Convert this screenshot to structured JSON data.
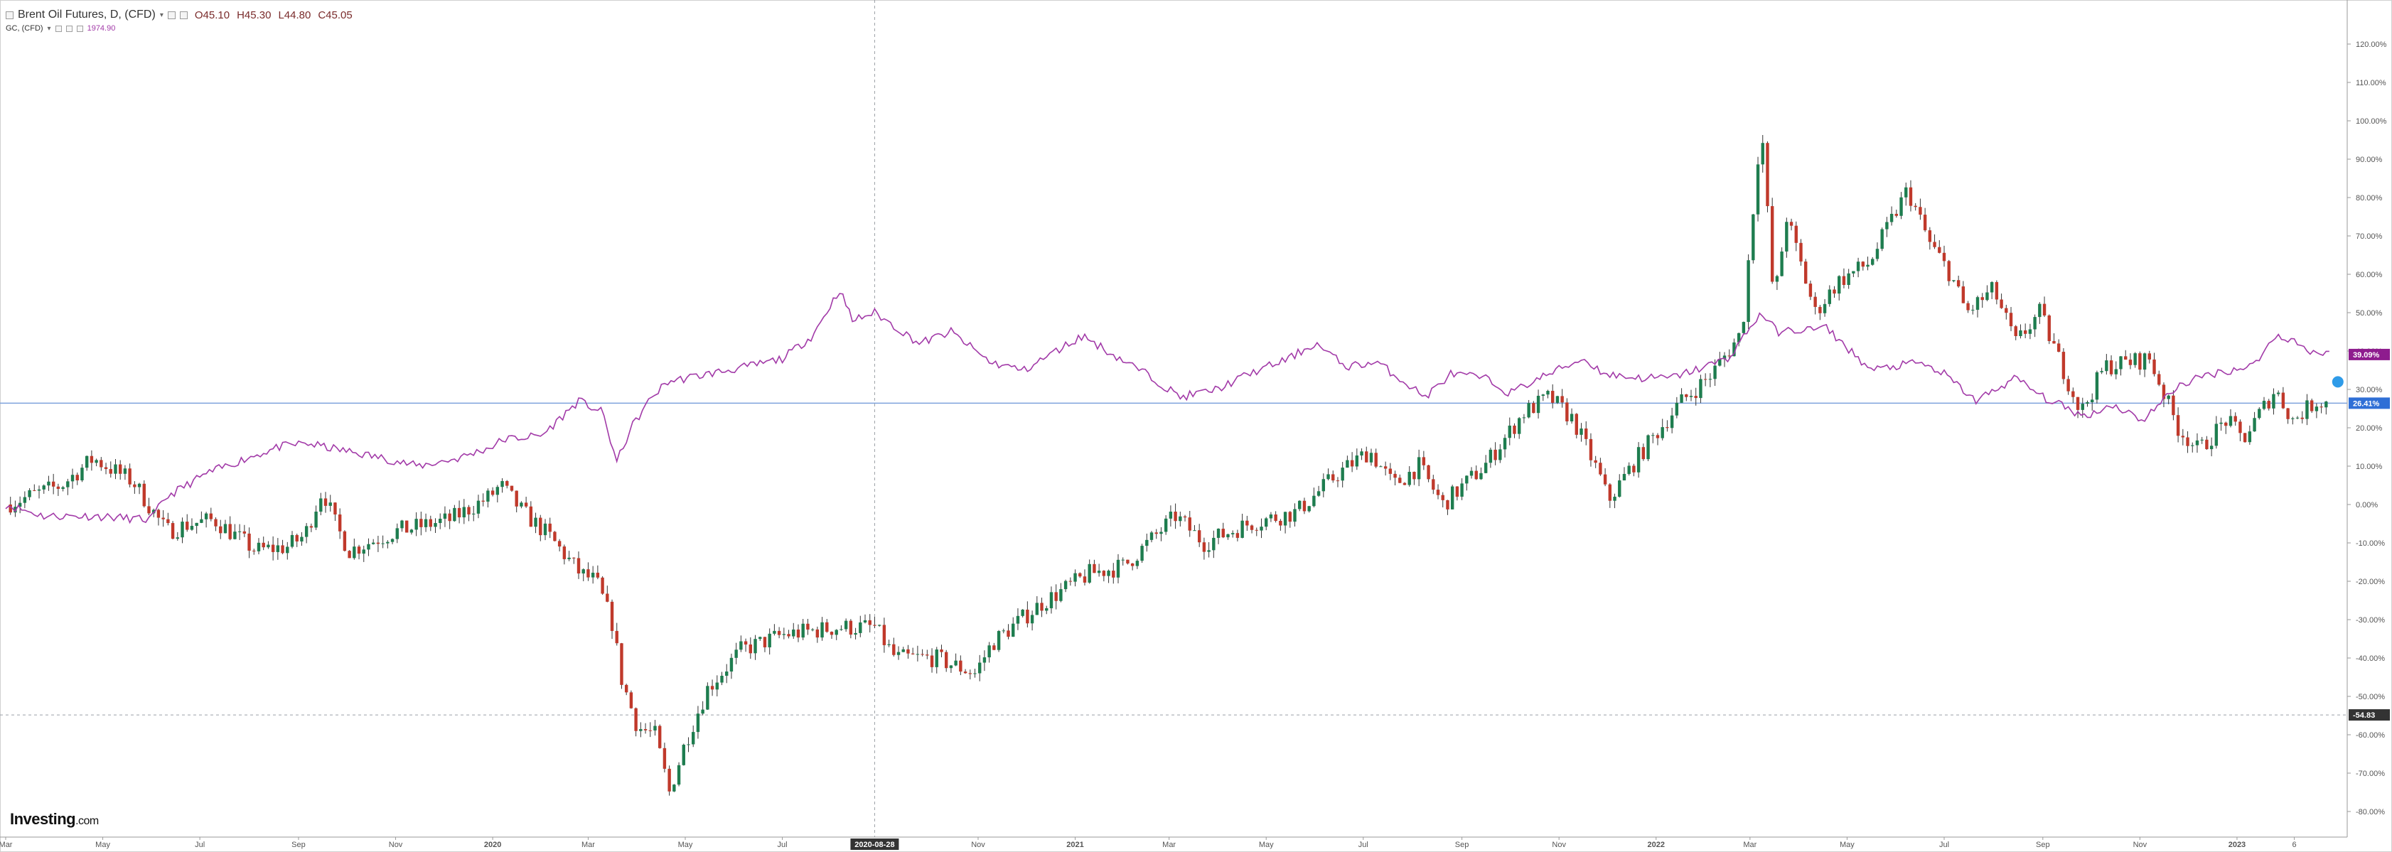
{
  "legend": {
    "primary_title": "Brent Oil Futures, D, (CFD)",
    "caret": "▾",
    "open": "O45.10",
    "high": "H45.30",
    "low": "L44.80",
    "close": "C45.05",
    "secondary_title": "GC, (CFD)",
    "secondary_value": "1974.90"
  },
  "logo": {
    "brand": "Investing",
    "suffix": ".com"
  },
  "colors": {
    "up": "#1e7d4f",
    "down": "#c0392b",
    "gold_line": "#a23aa8",
    "baseline": "#7ea2dc",
    "crosshair": "#9aa0a6",
    "axis_text": "#555555",
    "gold_badge": "#8e1c8e",
    "brent_badge": "#2f6fd6",
    "crosshair_badge": "#333333"
  },
  "chart_data": {
    "type": "line",
    "title": "Brent Oil Futures, D, (CFD)",
    "ylabel": "",
    "xlabel": "",
    "y_unit": "%",
    "ylim": [
      -85,
      125
    ],
    "xlim": [
      "2019-03-01",
      "2023-03-05"
    ],
    "grid": false,
    "y_ticks": [
      120,
      110,
      100,
      90,
      80,
      70,
      60,
      50,
      40,
      30,
      20,
      10,
      0,
      -10,
      -20,
      -30,
      -40,
      -50,
      -60,
      -70,
      -80
    ],
    "y_tick_labels": [
      "120.00%",
      "110.00%",
      "100.00%",
      "90.00%",
      "80.00%",
      "70.00%",
      "60.00%",
      "50.00%",
      "40.00%",
      "30.00%",
      "20.00%",
      "10.00%",
      "0.00%",
      "-10.00%",
      "-20.00%",
      "-30.00%",
      "-40.00%",
      "-50.00%",
      "-60.00%",
      "-70.00%",
      "-80.00%"
    ],
    "x_ticks": [
      {
        "date": "2019-03-01",
        "label": "Mar",
        "bold": false
      },
      {
        "date": "2019-05-01",
        "label": "May",
        "bold": false
      },
      {
        "date": "2019-07-01",
        "label": "Jul",
        "bold": false
      },
      {
        "date": "2019-09-01",
        "label": "Sep",
        "bold": false
      },
      {
        "date": "2019-11-01",
        "label": "Nov",
        "bold": false
      },
      {
        "date": "2020-01-01",
        "label": "2020",
        "bold": true
      },
      {
        "date": "2020-03-01",
        "label": "Mar",
        "bold": false
      },
      {
        "date": "2020-05-01",
        "label": "May",
        "bold": false
      },
      {
        "date": "2020-07-01",
        "label": "Jul",
        "bold": false
      },
      {
        "date": "2020-11-01",
        "label": "Nov",
        "bold": false
      },
      {
        "date": "2021-01-01",
        "label": "2021",
        "bold": true
      },
      {
        "date": "2021-03-01",
        "label": "Mar",
        "bold": false
      },
      {
        "date": "2021-05-01",
        "label": "May",
        "bold": false
      },
      {
        "date": "2021-07-01",
        "label": "Jul",
        "bold": false
      },
      {
        "date": "2021-09-01",
        "label": "Sep",
        "bold": false
      },
      {
        "date": "2021-11-01",
        "label": "Nov",
        "bold": false
      },
      {
        "date": "2022-01-01",
        "label": "2022",
        "bold": true
      },
      {
        "date": "2022-03-01",
        "label": "Mar",
        "bold": false
      },
      {
        "date": "2022-05-01",
        "label": "May",
        "bold": false
      },
      {
        "date": "2022-07-01",
        "label": "Jul",
        "bold": false
      },
      {
        "date": "2022-09-01",
        "label": "Sep",
        "bold": false
      },
      {
        "date": "2022-11-01",
        "label": "Nov",
        "bold": false
      },
      {
        "date": "2023-01-01",
        "label": "2023",
        "bold": true
      },
      {
        "date": "2023-02-06",
        "label": "6",
        "bold": false
      }
    ],
    "crosshair": {
      "date": "2020-08-28",
      "label": "2020-08-28",
      "value": -54.83,
      "value_label": "-54.83"
    },
    "baseline": {
      "value": 26.41
    },
    "last_value_labels": [
      {
        "series": "GC, (CFD)",
        "value": 39.09,
        "label": "39.09%"
      },
      {
        "series": "Brent Oil Futures, D, (CFD)",
        "value": 26.41,
        "label": "26.41%"
      }
    ],
    "series": [
      {
        "name": "Brent Oil Futures, D, (CFD)",
        "style": "candles",
        "points": [
          [
            "2019-03-01",
            0
          ],
          [
            "2019-04-05",
            5
          ],
          [
            "2019-04-25",
            12
          ],
          [
            "2019-05-20",
            6
          ],
          [
            "2019-06-10",
            -7
          ],
          [
            "2019-06-25",
            -5
          ],
          [
            "2019-07-10",
            -4
          ],
          [
            "2019-08-05",
            -12
          ],
          [
            "2019-08-25",
            -11
          ],
          [
            "2019-09-05",
            -8
          ],
          [
            "2019-09-16",
            4
          ],
          [
            "2019-09-25",
            -6
          ],
          [
            "2019-10-03",
            -12
          ],
          [
            "2019-11-01",
            -7
          ],
          [
            "2019-12-05",
            -4
          ],
          [
            "2019-12-30",
            2
          ],
          [
            "2020-01-06",
            5
          ],
          [
            "2020-01-20",
            -2
          ],
          [
            "2020-02-05",
            -8
          ],
          [
            "2020-02-25",
            -18
          ],
          [
            "2020-03-06",
            -20
          ],
          [
            "2020-03-18",
            -33
          ],
          [
            "2020-03-20",
            -43
          ],
          [
            "2020-04-01",
            -58
          ],
          [
            "2020-04-12",
            -60
          ],
          [
            "2020-04-21",
            -75
          ],
          [
            "2020-05-01",
            -62
          ],
          [
            "2020-05-15",
            -48
          ],
          [
            "2020-06-05",
            -38
          ],
          [
            "2020-07-01",
            -34
          ],
          [
            "2020-08-05",
            -32
          ],
          [
            "2020-08-28",
            -32
          ],
          [
            "2020-09-10",
            -40
          ],
          [
            "2020-10-05",
            -40
          ],
          [
            "2020-10-30",
            -44
          ],
          [
            "2020-11-10",
            -36
          ],
          [
            "2020-12-10",
            -26
          ],
          [
            "2021-01-10",
            -18
          ],
          [
            "2021-02-01",
            -16
          ],
          [
            "2021-03-05",
            -3
          ],
          [
            "2021-03-23",
            -10
          ],
          [
            "2021-04-20",
            -5
          ],
          [
            "2021-05-20",
            -2
          ],
          [
            "2021-06-15",
            8
          ],
          [
            "2021-07-05",
            14
          ],
          [
            "2021-07-20",
            5
          ],
          [
            "2021-08-05",
            10
          ],
          [
            "2021-08-20",
            0
          ],
          [
            "2021-09-15",
            10
          ],
          [
            "2021-10-10",
            24
          ],
          [
            "2021-10-26",
            28
          ],
          [
            "2021-11-10",
            22
          ],
          [
            "2021-11-26",
            8
          ],
          [
            "2021-12-02",
            1
          ],
          [
            "2021-12-20",
            12
          ],
          [
            "2022-01-15",
            26
          ],
          [
            "2022-02-05",
            34
          ],
          [
            "2022-02-24",
            45
          ],
          [
            "2022-03-08",
            100
          ],
          [
            "2022-03-16",
            52
          ],
          [
            "2022-03-24",
            75
          ],
          [
            "2022-04-11",
            50
          ],
          [
            "2022-04-25",
            58
          ],
          [
            "2022-05-15",
            63
          ],
          [
            "2022-06-08",
            82
          ],
          [
            "2022-06-22",
            68
          ],
          [
            "2022-07-05",
            60
          ],
          [
            "2022-07-15",
            50
          ],
          [
            "2022-08-01",
            56
          ],
          [
            "2022-08-15",
            42
          ],
          [
            "2022-08-30",
            50
          ],
          [
            "2022-09-25",
            24
          ],
          [
            "2022-10-10",
            36
          ],
          [
            "2022-11-07",
            38
          ],
          [
            "2022-11-25",
            20
          ],
          [
            "2022-12-08",
            14
          ],
          [
            "2022-12-25",
            22
          ],
          [
            "2023-01-05",
            17
          ],
          [
            "2023-01-25",
            30
          ],
          [
            "2023-02-05",
            22
          ],
          [
            "2023-02-20",
            27
          ],
          [
            "2023-02-28",
            26.41
          ]
        ]
      },
      {
        "name": "GC, (CFD)",
        "style": "line",
        "points": [
          [
            "2019-03-01",
            0
          ],
          [
            "2019-03-25",
            -3
          ],
          [
            "2019-04-25",
            -3
          ],
          [
            "2019-05-31",
            -4
          ],
          [
            "2019-06-10",
            2
          ],
          [
            "2019-07-05",
            8
          ],
          [
            "2019-07-30",
            12
          ],
          [
            "2019-08-20",
            15
          ],
          [
            "2019-09-05",
            16
          ],
          [
            "2019-09-30",
            14
          ],
          [
            "2019-10-25",
            12
          ],
          [
            "2019-11-15",
            10
          ],
          [
            "2019-12-10",
            12
          ],
          [
            "2019-12-31",
            15
          ],
          [
            "2020-01-08",
            17
          ],
          [
            "2020-02-01",
            18
          ],
          [
            "2020-02-24",
            27
          ],
          [
            "2020-03-10",
            24
          ],
          [
            "2020-03-19",
            11
          ],
          [
            "2020-03-28",
            20
          ],
          [
            "2020-04-10",
            28
          ],
          [
            "2020-04-20",
            32
          ],
          [
            "2020-05-15",
            34
          ],
          [
            "2020-06-10",
            36
          ],
          [
            "2020-07-01",
            38
          ],
          [
            "2020-07-20",
            44
          ],
          [
            "2020-08-06",
            56
          ],
          [
            "2020-08-14",
            48
          ],
          [
            "2020-08-28",
            50
          ],
          [
            "2020-09-25",
            42
          ],
          [
            "2020-10-15",
            45
          ],
          [
            "2020-11-09",
            37
          ],
          [
            "2020-11-30",
            35
          ],
          [
            "2020-12-20",
            40
          ],
          [
            "2021-01-06",
            44
          ],
          [
            "2021-01-25",
            39
          ],
          [
            "2021-02-15",
            34
          ],
          [
            "2021-03-08",
            28
          ],
          [
            "2021-03-31",
            30
          ],
          [
            "2021-04-20",
            34
          ],
          [
            "2021-05-15",
            38
          ],
          [
            "2021-06-01",
            42
          ],
          [
            "2021-06-20",
            36
          ],
          [
            "2021-07-10",
            37
          ],
          [
            "2021-08-09",
            28
          ],
          [
            "2021-08-25",
            34
          ],
          [
            "2021-09-15",
            33
          ],
          [
            "2021-10-01",
            29
          ],
          [
            "2021-10-20",
            33
          ],
          [
            "2021-11-16",
            38
          ],
          [
            "2021-11-30",
            34
          ],
          [
            "2021-12-20",
            33
          ],
          [
            "2022-01-10",
            33
          ],
          [
            "2022-01-25",
            35
          ],
          [
            "2022-02-15",
            38
          ],
          [
            "2022-03-08",
            50
          ],
          [
            "2022-03-18",
            45
          ],
          [
            "2022-04-18",
            46
          ],
          [
            "2022-05-16",
            35
          ],
          [
            "2022-06-15",
            37
          ],
          [
            "2022-07-01",
            34
          ],
          [
            "2022-07-21",
            27
          ],
          [
            "2022-08-15",
            33
          ],
          [
            "2022-09-01",
            28
          ],
          [
            "2022-09-27",
            23
          ],
          [
            "2022-10-15",
            26
          ],
          [
            "2022-11-03",
            22
          ],
          [
            "2022-11-25",
            31
          ],
          [
            "2022-12-15",
            34
          ],
          [
            "2023-01-10",
            36
          ],
          [
            "2023-01-26",
            44
          ],
          [
            "2023-02-05",
            43
          ],
          [
            "2023-02-15",
            40
          ],
          [
            "2023-02-28",
            39.09
          ]
        ]
      }
    ]
  }
}
